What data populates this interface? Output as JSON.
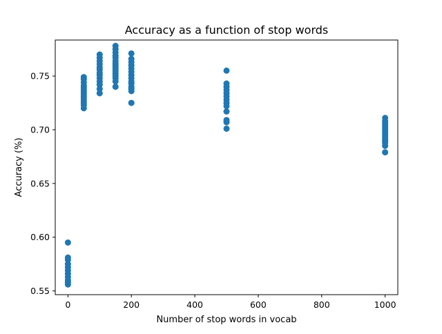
{
  "chart_data": {
    "type": "scatter",
    "title": "Accuracy as a function of stop words",
    "xlabel": "Number of stop words in vocab",
    "ylabel": "Accuracy (%)",
    "xlim": [
      -40,
      1040
    ],
    "ylim": [
      0.5465,
      0.7835
    ],
    "x_ticks": [
      0,
      200,
      400,
      600,
      800,
      1000
    ],
    "y_ticks": [
      0.55,
      0.6,
      0.65,
      0.7,
      0.75
    ],
    "x_tick_labels": [
      "0",
      "200",
      "400",
      "600",
      "800",
      "1000"
    ],
    "y_tick_labels": [
      "0.55",
      "0.60",
      "0.65",
      "0.70",
      "0.75"
    ],
    "grid": false,
    "legend": "none",
    "marker_color": "#1f77b4",
    "points": [
      {
        "x": 0,
        "y": 0.595
      },
      {
        "x": 0,
        "y": 0.581
      },
      {
        "x": 0,
        "y": 0.579
      },
      {
        "x": 0,
        "y": 0.575
      },
      {
        "x": 0,
        "y": 0.572
      },
      {
        "x": 0,
        "y": 0.569
      },
      {
        "x": 0,
        "y": 0.566
      },
      {
        "x": 0,
        "y": 0.563
      },
      {
        "x": 0,
        "y": 0.56
      },
      {
        "x": 0,
        "y": 0.558
      },
      {
        "x": 0,
        "y": 0.556
      },
      {
        "x": 50,
        "y": 0.749
      },
      {
        "x": 50,
        "y": 0.747
      },
      {
        "x": 50,
        "y": 0.744
      },
      {
        "x": 50,
        "y": 0.741
      },
      {
        "x": 50,
        "y": 0.739
      },
      {
        "x": 50,
        "y": 0.737
      },
      {
        "x": 50,
        "y": 0.735
      },
      {
        "x": 50,
        "y": 0.733
      },
      {
        "x": 50,
        "y": 0.731
      },
      {
        "x": 50,
        "y": 0.729
      },
      {
        "x": 50,
        "y": 0.727
      },
      {
        "x": 50,
        "y": 0.725
      },
      {
        "x": 50,
        "y": 0.723
      },
      {
        "x": 50,
        "y": 0.72
      },
      {
        "x": 100,
        "y": 0.77
      },
      {
        "x": 100,
        "y": 0.767
      },
      {
        "x": 100,
        "y": 0.764
      },
      {
        "x": 100,
        "y": 0.761
      },
      {
        "x": 100,
        "y": 0.758
      },
      {
        "x": 100,
        "y": 0.756
      },
      {
        "x": 100,
        "y": 0.753
      },
      {
        "x": 100,
        "y": 0.751
      },
      {
        "x": 100,
        "y": 0.748
      },
      {
        "x": 100,
        "y": 0.745
      },
      {
        "x": 100,
        "y": 0.742
      },
      {
        "x": 100,
        "y": 0.738
      },
      {
        "x": 100,
        "y": 0.734
      },
      {
        "x": 150,
        "y": 0.778
      },
      {
        "x": 150,
        "y": 0.775
      },
      {
        "x": 150,
        "y": 0.772
      },
      {
        "x": 150,
        "y": 0.769
      },
      {
        "x": 150,
        "y": 0.767
      },
      {
        "x": 150,
        "y": 0.764
      },
      {
        "x": 150,
        "y": 0.762
      },
      {
        "x": 150,
        "y": 0.76
      },
      {
        "x": 150,
        "y": 0.758
      },
      {
        "x": 150,
        "y": 0.756
      },
      {
        "x": 150,
        "y": 0.754
      },
      {
        "x": 150,
        "y": 0.752
      },
      {
        "x": 150,
        "y": 0.75
      },
      {
        "x": 150,
        "y": 0.748
      },
      {
        "x": 150,
        "y": 0.745
      },
      {
        "x": 150,
        "y": 0.74
      },
      {
        "x": 200,
        "y": 0.771
      },
      {
        "x": 200,
        "y": 0.766
      },
      {
        "x": 200,
        "y": 0.763
      },
      {
        "x": 200,
        "y": 0.76
      },
      {
        "x": 200,
        "y": 0.757
      },
      {
        "x": 200,
        "y": 0.754
      },
      {
        "x": 200,
        "y": 0.751
      },
      {
        "x": 200,
        "y": 0.748
      },
      {
        "x": 200,
        "y": 0.745
      },
      {
        "x": 200,
        "y": 0.743
      },
      {
        "x": 200,
        "y": 0.74
      },
      {
        "x": 200,
        "y": 0.738
      },
      {
        "x": 200,
        "y": 0.736
      },
      {
        "x": 200,
        "y": 0.725
      },
      {
        "x": 500,
        "y": 0.755
      },
      {
        "x": 500,
        "y": 0.743
      },
      {
        "x": 500,
        "y": 0.74
      },
      {
        "x": 500,
        "y": 0.737
      },
      {
        "x": 500,
        "y": 0.734
      },
      {
        "x": 500,
        "y": 0.731
      },
      {
        "x": 500,
        "y": 0.728
      },
      {
        "x": 500,
        "y": 0.725
      },
      {
        "x": 500,
        "y": 0.722
      },
      {
        "x": 500,
        "y": 0.717
      },
      {
        "x": 500,
        "y": 0.709
      },
      {
        "x": 500,
        "y": 0.707
      },
      {
        "x": 500,
        "y": 0.701
      },
      {
        "x": 1000,
        "y": 0.711
      },
      {
        "x": 1000,
        "y": 0.708
      },
      {
        "x": 1000,
        "y": 0.706
      },
      {
        "x": 1000,
        "y": 0.704
      },
      {
        "x": 1000,
        "y": 0.702
      },
      {
        "x": 1000,
        "y": 0.7
      },
      {
        "x": 1000,
        "y": 0.698
      },
      {
        "x": 1000,
        "y": 0.696
      },
      {
        "x": 1000,
        "y": 0.694
      },
      {
        "x": 1000,
        "y": 0.692
      },
      {
        "x": 1000,
        "y": 0.69
      },
      {
        "x": 1000,
        "y": 0.688
      },
      {
        "x": 1000,
        "y": 0.685
      },
      {
        "x": 1000,
        "y": 0.679
      }
    ]
  }
}
